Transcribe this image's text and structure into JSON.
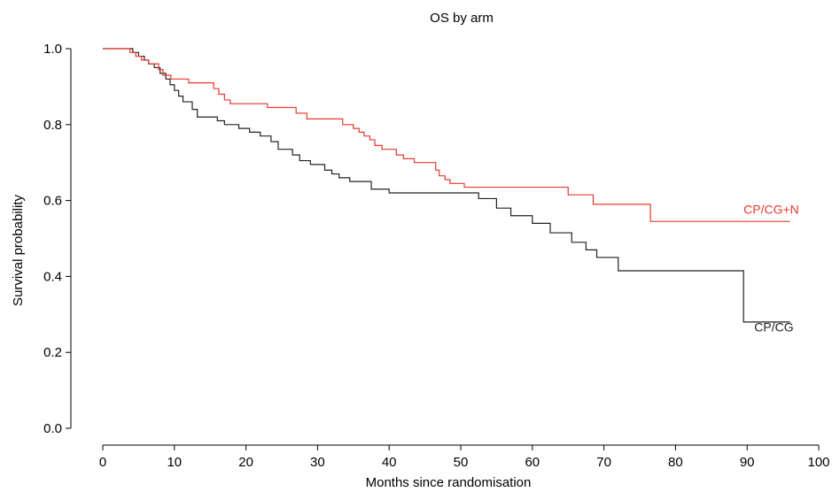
{
  "chart_data": {
    "type": "line",
    "subtype": "kaplan-meier-step",
    "title": "OS by arm",
    "xlabel": "Months since randomisation",
    "ylabel": "Survival probability",
    "xlim": [
      0,
      100
    ],
    "ylim": [
      0,
      1
    ],
    "xticks": [
      "0",
      "10",
      "20",
      "30",
      "40",
      "50",
      "60",
      "70",
      "80",
      "90",
      "100"
    ],
    "yticks": [
      "0.0",
      "0.2",
      "0.4",
      "0.6",
      "0.8",
      "1.0"
    ],
    "grid": false,
    "legend": "inline-labels",
    "series": [
      {
        "name": "CP/CG",
        "color": "#222222",
        "label_anchor": [
          91,
          0.255
        ],
        "points": [
          [
            0,
            1.0
          ],
          [
            4.2,
            1.0
          ],
          [
            4.2,
            0.99
          ],
          [
            5.0,
            0.99
          ],
          [
            5.0,
            0.98
          ],
          [
            5.8,
            0.98
          ],
          [
            5.8,
            0.97
          ],
          [
            6.4,
            0.97
          ],
          [
            6.4,
            0.96
          ],
          [
            7.2,
            0.96
          ],
          [
            7.2,
            0.95
          ],
          [
            8.0,
            0.95
          ],
          [
            8.0,
            0.935
          ],
          [
            8.8,
            0.935
          ],
          [
            8.8,
            0.92
          ],
          [
            9.4,
            0.92
          ],
          [
            9.4,
            0.905
          ],
          [
            10.0,
            0.905
          ],
          [
            10.0,
            0.89
          ],
          [
            10.6,
            0.89
          ],
          [
            10.6,
            0.875
          ],
          [
            11.2,
            0.875
          ],
          [
            11.2,
            0.86
          ],
          [
            12.5,
            0.86
          ],
          [
            12.5,
            0.84
          ],
          [
            13.2,
            0.84
          ],
          [
            13.2,
            0.82
          ],
          [
            16.0,
            0.82
          ],
          [
            16.0,
            0.81
          ],
          [
            17.0,
            0.81
          ],
          [
            17.0,
            0.8
          ],
          [
            19.0,
            0.8
          ],
          [
            19.0,
            0.79
          ],
          [
            20.5,
            0.79
          ],
          [
            20.5,
            0.78
          ],
          [
            22.0,
            0.78
          ],
          [
            22.0,
            0.77
          ],
          [
            23.5,
            0.77
          ],
          [
            23.5,
            0.755
          ],
          [
            24.5,
            0.755
          ],
          [
            24.5,
            0.735
          ],
          [
            26.5,
            0.735
          ],
          [
            26.5,
            0.72
          ],
          [
            27.5,
            0.72
          ],
          [
            27.5,
            0.705
          ],
          [
            29.0,
            0.705
          ],
          [
            29.0,
            0.695
          ],
          [
            31.0,
            0.695
          ],
          [
            31.0,
            0.68
          ],
          [
            32.0,
            0.68
          ],
          [
            32.0,
            0.67
          ],
          [
            33.0,
            0.67
          ],
          [
            33.0,
            0.66
          ],
          [
            34.5,
            0.66
          ],
          [
            34.5,
            0.65
          ],
          [
            37.5,
            0.65
          ],
          [
            37.5,
            0.63
          ],
          [
            40.0,
            0.63
          ],
          [
            40.0,
            0.62
          ],
          [
            52.5,
            0.62
          ],
          [
            52.5,
            0.605
          ],
          [
            55.0,
            0.605
          ],
          [
            55.0,
            0.58
          ],
          [
            57.0,
            0.58
          ],
          [
            57.0,
            0.56
          ],
          [
            60.0,
            0.56
          ],
          [
            60.0,
            0.54
          ],
          [
            62.5,
            0.54
          ],
          [
            62.5,
            0.515
          ],
          [
            65.5,
            0.515
          ],
          [
            65.5,
            0.49
          ],
          [
            67.5,
            0.49
          ],
          [
            67.5,
            0.47
          ],
          [
            69.0,
            0.47
          ],
          [
            69.0,
            0.45
          ],
          [
            72.0,
            0.45
          ],
          [
            72.0,
            0.415
          ],
          [
            89.5,
            0.415
          ],
          [
            89.5,
            0.28
          ],
          [
            96.0,
            0.28
          ]
        ]
      },
      {
        "name": "CP/CG+N",
        "color": "#e8392f",
        "label_anchor": [
          89.5,
          0.565
        ],
        "points": [
          [
            0,
            1.0
          ],
          [
            3.8,
            1.0
          ],
          [
            3.8,
            0.99
          ],
          [
            4.6,
            0.99
          ],
          [
            4.6,
            0.98
          ],
          [
            5.4,
            0.98
          ],
          [
            5.4,
            0.97
          ],
          [
            6.4,
            0.97
          ],
          [
            6.4,
            0.96
          ],
          [
            7.8,
            0.96
          ],
          [
            7.8,
            0.945
          ],
          [
            8.4,
            0.945
          ],
          [
            8.4,
            0.93
          ],
          [
            9.5,
            0.93
          ],
          [
            9.5,
            0.92
          ],
          [
            12.0,
            0.92
          ],
          [
            12.0,
            0.91
          ],
          [
            15.5,
            0.91
          ],
          [
            15.5,
            0.895
          ],
          [
            16.2,
            0.895
          ],
          [
            16.2,
            0.88
          ],
          [
            17.0,
            0.88
          ],
          [
            17.0,
            0.865
          ],
          [
            17.8,
            0.865
          ],
          [
            17.8,
            0.855
          ],
          [
            23.0,
            0.855
          ],
          [
            23.0,
            0.845
          ],
          [
            27.0,
            0.845
          ],
          [
            27.0,
            0.83
          ],
          [
            28.5,
            0.83
          ],
          [
            28.5,
            0.815
          ],
          [
            33.5,
            0.815
          ],
          [
            33.5,
            0.8
          ],
          [
            35.0,
            0.8
          ],
          [
            35.0,
            0.79
          ],
          [
            35.8,
            0.79
          ],
          [
            35.8,
            0.78
          ],
          [
            36.5,
            0.78
          ],
          [
            36.5,
            0.77
          ],
          [
            37.3,
            0.77
          ],
          [
            37.3,
            0.76
          ],
          [
            38.0,
            0.76
          ],
          [
            38.0,
            0.745
          ],
          [
            39.0,
            0.745
          ],
          [
            39.0,
            0.735
          ],
          [
            41.0,
            0.735
          ],
          [
            41.0,
            0.72
          ],
          [
            42.0,
            0.72
          ],
          [
            42.0,
            0.71
          ],
          [
            43.5,
            0.71
          ],
          [
            43.5,
            0.7
          ],
          [
            46.5,
            0.7
          ],
          [
            46.5,
            0.68
          ],
          [
            47.0,
            0.68
          ],
          [
            47.0,
            0.665
          ],
          [
            47.8,
            0.665
          ],
          [
            47.8,
            0.655
          ],
          [
            48.5,
            0.655
          ],
          [
            48.5,
            0.645
          ],
          [
            50.5,
            0.645
          ],
          [
            50.5,
            0.635
          ],
          [
            65.0,
            0.635
          ],
          [
            65.0,
            0.615
          ],
          [
            68.5,
            0.615
          ],
          [
            68.5,
            0.59
          ],
          [
            76.5,
            0.59
          ],
          [
            76.5,
            0.545
          ],
          [
            96.0,
            0.545
          ]
        ]
      }
    ]
  }
}
